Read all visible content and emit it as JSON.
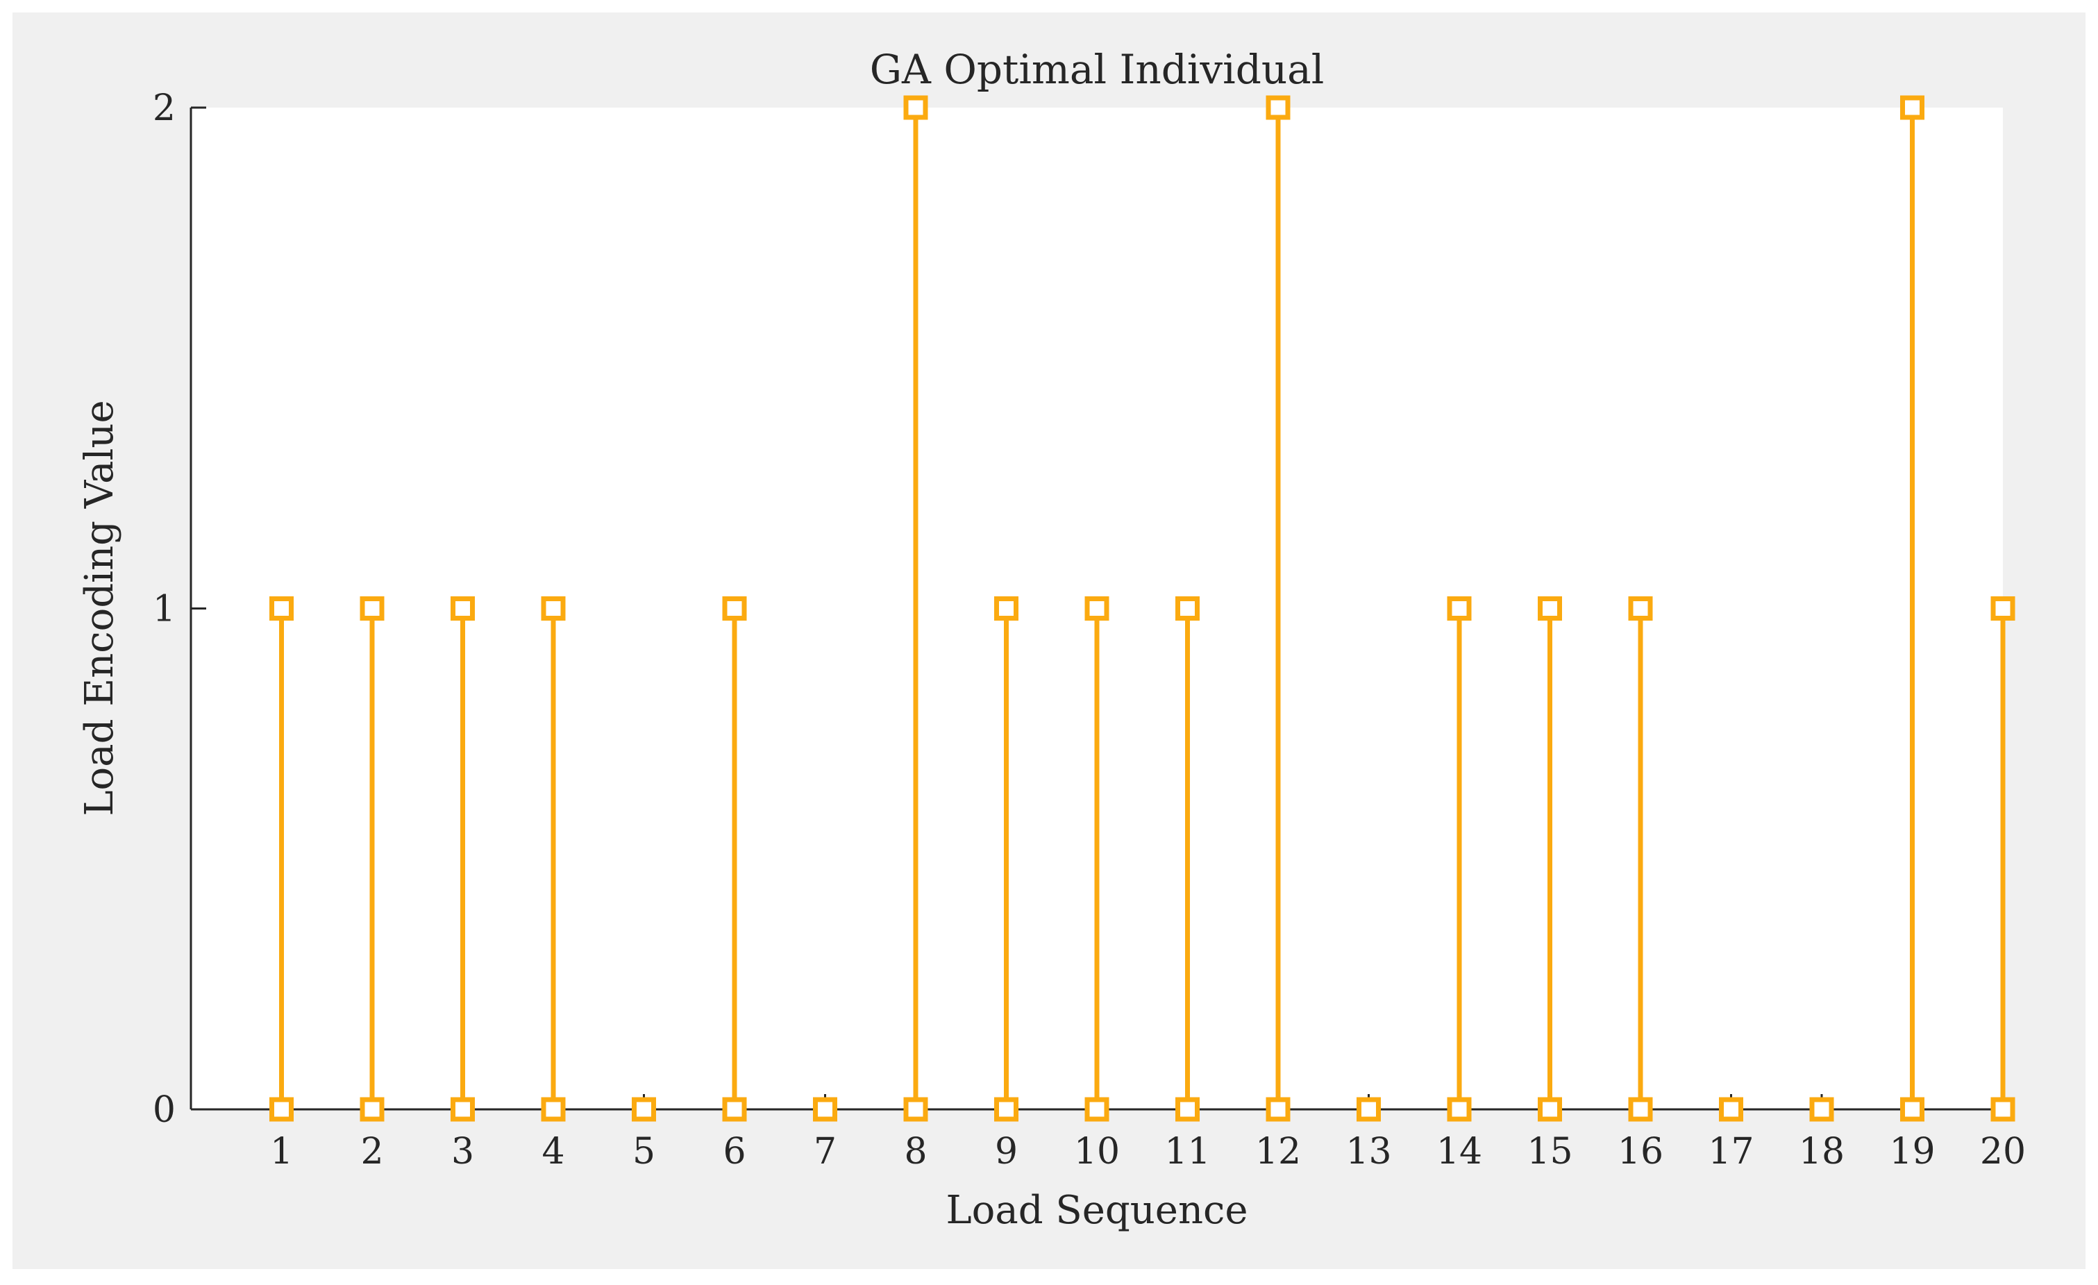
{
  "chart_data": {
    "type": "stem",
    "title": "GA Optimal Individual",
    "xlabel": "Load Sequence",
    "ylabel": "Load Encoding Value",
    "x": [
      1,
      2,
      3,
      4,
      5,
      6,
      7,
      8,
      9,
      10,
      11,
      12,
      13,
      14,
      15,
      16,
      17,
      18,
      19,
      20
    ],
    "values": [
      1,
      1,
      1,
      1,
      0,
      1,
      0,
      2,
      1,
      1,
      1,
      2,
      0,
      1,
      1,
      1,
      0,
      0,
      2,
      1
    ],
    "xlim": [
      0,
      20
    ],
    "ylim": [
      0,
      2
    ],
    "xticks": [
      "1",
      "2",
      "3",
      "4",
      "5",
      "6",
      "7",
      "8",
      "9",
      "10",
      "11",
      "12",
      "13",
      "14",
      "15",
      "16",
      "17",
      "18",
      "19",
      "20"
    ],
    "yticks": [
      "0",
      "1",
      "2"
    ],
    "marker": "square",
    "grid": false,
    "colors": {
      "stem": "#FBAA10",
      "axes_background": "#FFFFFF",
      "figure_background": "#F0F0F0",
      "axis": "#262626"
    }
  }
}
